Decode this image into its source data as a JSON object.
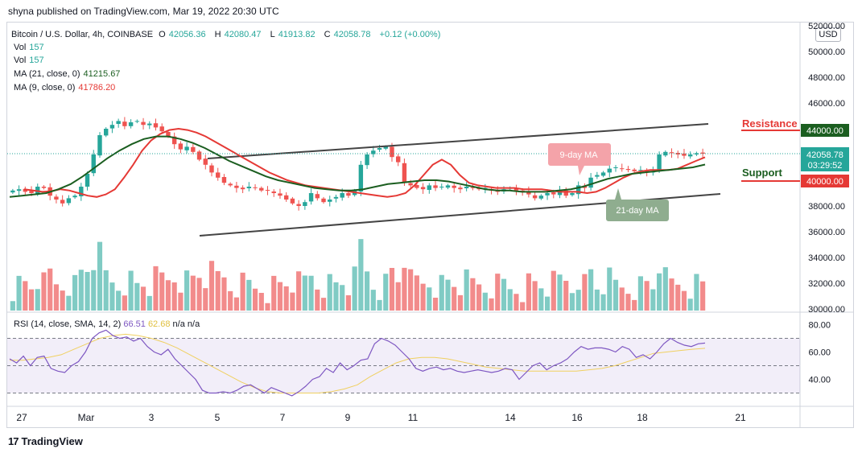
{
  "publisher": "shyna published on TradingView.com, Mar 19, 2022 20:30 UTC",
  "legend": {
    "symbol": "Bitcoin / U.S. Dollar, 4h, COINBASE",
    "ohlc": {
      "o_label": "O",
      "o": "42056.36",
      "h_label": "H",
      "h": "42080.47",
      "l_label": "L",
      "l": "41913.82",
      "c_label": "C",
      "c": "42058.78",
      "change": "+0.12 (+0.00%)"
    },
    "vol1_label": "Vol",
    "vol1": "157",
    "vol2_label": "Vol",
    "vol2": "157",
    "ma21_label": "MA (21, close, 0)",
    "ma21": "41215.67",
    "ma9_label": "MA (9, close, 0)",
    "ma9": "41786.20"
  },
  "currency_button": "USD",
  "price_axis": [
    "52000.00",
    "50000.00",
    "48000.00",
    "46000.00",
    "44000.00",
    "42000.00",
    "40000.00",
    "38000.00",
    "36000.00",
    "34000.00",
    "32000.00",
    "30000.00"
  ],
  "current_price_tag": {
    "price": "42058.78",
    "countdown": "03:29:52"
  },
  "resistance": {
    "label": "Resistance",
    "price": "44000.00"
  },
  "support": {
    "label": "Support",
    "price": "40000.00"
  },
  "annotations": {
    "ma9": "9-day MA",
    "ma21": "21-day MA"
  },
  "rsi": {
    "legend_label": "RSI (14, close, SMA, 14, 2)",
    "value": "66.51",
    "sma": "62.68",
    "na1": "n/a",
    "na2": "n/a",
    "axis": [
      "80.00",
      "60.00",
      "40.00"
    ],
    "levels": [
      70,
      50,
      30
    ]
  },
  "time_axis": [
    "27",
    "Mar",
    "3",
    "5",
    "7",
    "9",
    "11",
    "14",
    "16",
    "18",
    "21"
  ],
  "footer": "TradingView",
  "colors": {
    "up": "#26a69a",
    "down": "#ef5350",
    "ma9": "#e53935",
    "ma21": "#1b5e20",
    "rsi": "#7e57c2",
    "rsi_sma": "#f0d060",
    "resistance": "#e53935",
    "support": "#1b5e20"
  },
  "chart_data": [
    {
      "type": "candlestick",
      "title": "Bitcoin / U.S. Dollar, 4h, COINBASE",
      "ylim": [
        30000,
        52000
      ],
      "x_ticks": [
        "27",
        "Mar",
        "3",
        "5",
        "7",
        "9",
        "11",
        "14",
        "16",
        "18",
        "21"
      ],
      "series": [
        {
          "name": "BTCUSD close (approx)",
          "values": [
            39200,
            39300,
            39100,
            39000,
            39500,
            39400,
            38800,
            38500,
            38200,
            38600,
            38800,
            39500,
            40500,
            42000,
            43500,
            44000,
            44300,
            44600,
            44200,
            44500,
            44600,
            44300,
            44400,
            44100,
            43800,
            43400,
            42800,
            42400,
            42600,
            42200,
            41600,
            41200,
            40600,
            40200,
            39800,
            39600,
            39400,
            39300,
            39500,
            39400,
            39200,
            39200,
            39000,
            38800,
            38500,
            38200,
            38000,
            38300,
            39000,
            38600,
            38300,
            38500,
            38700,
            39000,
            38800,
            39200,
            41200,
            42000,
            42300,
            42500,
            42600,
            41800,
            41400,
            39800,
            39600,
            39400,
            39300,
            39600,
            39400,
            39500,
            39600,
            39400,
            39300,
            39500,
            39400,
            39300,
            39400,
            39200,
            39100,
            39300,
            39400,
            39200,
            39100,
            38900,
            38600,
            38800,
            39000,
            38900,
            39200,
            38800,
            39000,
            39600,
            39400,
            40200,
            40400,
            40600,
            40900,
            41000,
            40900,
            40800,
            40700,
            40800,
            40600,
            40700,
            42000,
            42200,
            42100,
            42000,
            41900,
            42000,
            42100,
            42058.78
          ]
        },
        {
          "name": "MA (9, close, 0)",
          "values": [
            39300,
            39200,
            39100,
            39150,
            39300,
            39200,
            39000,
            38800,
            38700,
            38900,
            39300,
            40200,
            41200,
            42300,
            43100,
            43600,
            43900,
            44000,
            43900,
            43700,
            43400,
            43000,
            42600,
            42200,
            41800,
            41400,
            41000,
            40600,
            40300,
            40000,
            39800,
            39600,
            39500,
            39400,
            39300,
            39200,
            39100,
            39000,
            38900,
            38800,
            38700,
            38800,
            39000,
            39600,
            40400,
            41200,
            41600,
            41200,
            40400,
            39800,
            39600,
            39500,
            39400,
            39400,
            39400,
            39300,
            39300,
            39300,
            39200,
            39100,
            39100,
            39100,
            39000,
            39100,
            39400,
            39800,
            40200,
            40500,
            40700,
            40800,
            40800,
            40800,
            40900,
            41200,
            41500,
            41786.2
          ]
        },
        {
          "name": "MA (21, close, 0)",
          "values": [
            38700,
            38800,
            38900,
            39000,
            39300,
            39700,
            40300,
            41000,
            41700,
            42300,
            42800,
            43200,
            43400,
            43400,
            43200,
            42900,
            42500,
            42000,
            41500,
            41100,
            40700,
            40300,
            40000,
            39800,
            39600,
            39400,
            39300,
            39200,
            39200,
            39300,
            39500,
            39700,
            39800,
            39900,
            40000,
            40000,
            39900,
            39700,
            39500,
            39300,
            39200,
            39200,
            39100,
            39100,
            39100,
            39200,
            39300,
            39500,
            39800,
            40100,
            40300,
            40500,
            40600,
            40700,
            40800,
            40900,
            41000,
            41215.67
          ]
        },
        {
          "name": "Volume",
          "values": []
        }
      ]
    },
    {
      "type": "line",
      "title": "RSI (14, close, SMA, 14, 2)",
      "ylim": [
        25,
        85
      ],
      "series": [
        {
          "name": "RSI",
          "values": [
            55,
            52,
            57,
            50,
            56,
            57,
            48,
            46,
            45,
            50,
            53,
            60,
            70,
            74,
            76,
            72,
            70,
            71,
            68,
            70,
            64,
            60,
            58,
            62,
            55,
            50,
            45,
            40,
            32,
            30,
            30,
            31,
            30,
            32,
            35,
            36,
            33,
            30,
            34,
            32,
            30,
            28,
            31,
            35,
            40,
            42,
            48,
            45,
            52,
            47,
            50,
            54,
            55,
            66,
            70,
            68,
            65,
            60,
            55,
            48,
            46,
            48,
            49,
            47,
            48,
            46,
            45,
            46,
            47,
            46,
            45,
            46,
            48,
            47,
            40,
            45,
            50,
            52,
            47,
            50,
            52,
            55,
            60,
            64,
            62,
            63,
            63,
            62,
            60,
            64,
            62,
            56,
            58,
            55,
            60,
            66,
            70,
            67,
            65,
            64,
            66,
            66.51
          ]
        },
        {
          "name": "RSI SMA",
          "values": [
            54,
            54,
            55,
            56,
            58,
            62,
            66,
            70,
            72,
            73,
            72,
            70,
            67,
            63,
            58,
            53,
            48,
            43,
            38,
            34,
            31,
            30,
            30,
            30,
            30,
            31,
            33,
            36,
            42,
            47,
            52,
            55,
            56,
            56,
            55,
            53,
            51,
            49,
            48,
            47,
            46,
            46,
            46,
            46,
            46,
            47,
            48,
            50,
            53,
            56,
            59,
            60,
            61,
            62,
            62.68
          ]
        }
      ]
    }
  ]
}
